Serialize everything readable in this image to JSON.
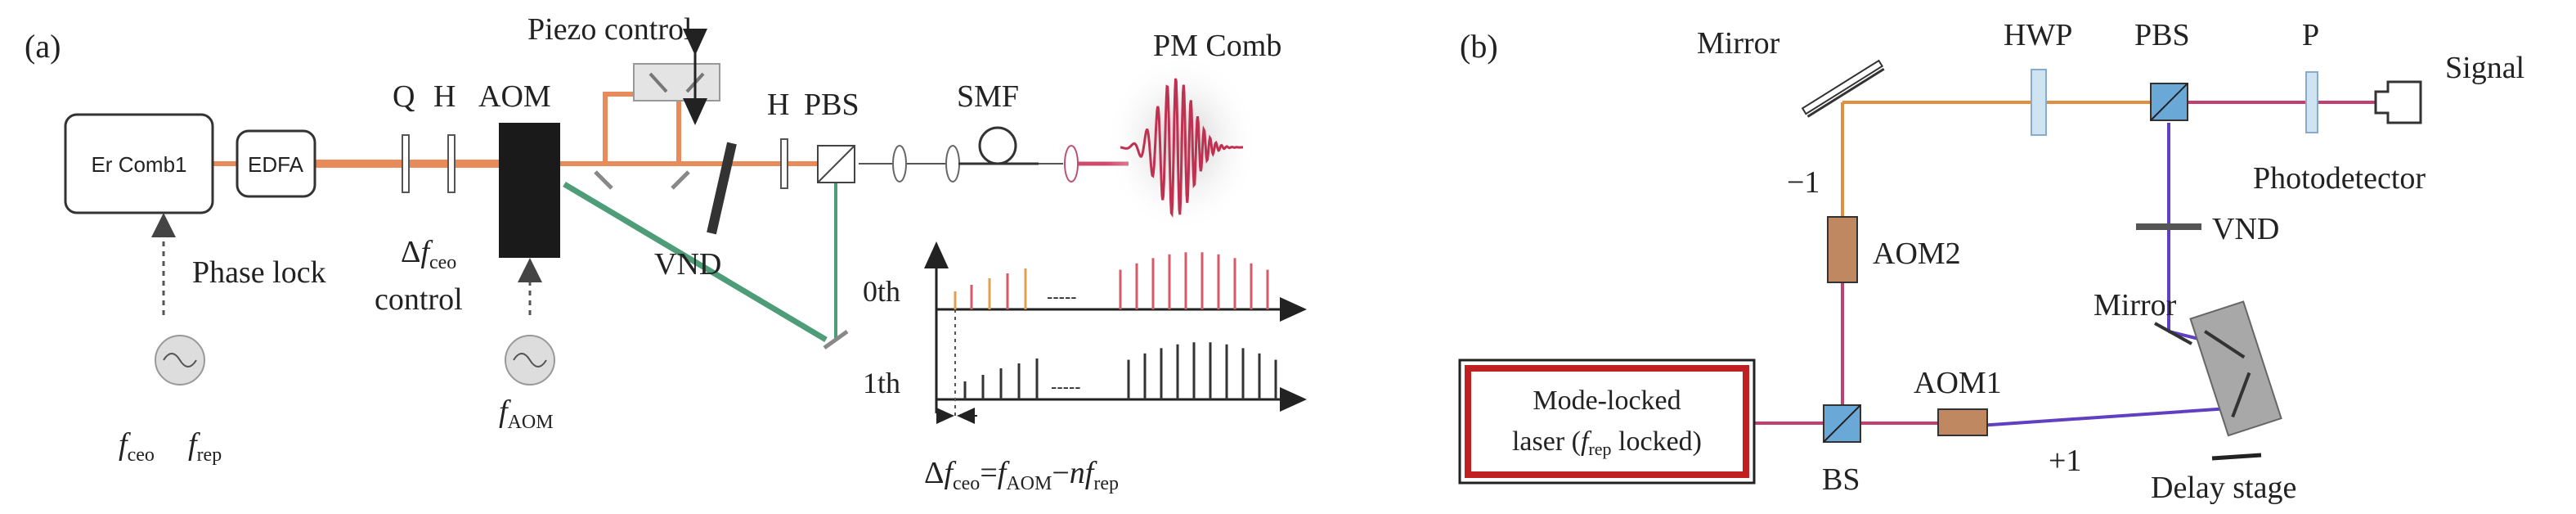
{
  "panel_a": {
    "tag": "(a)",
    "er_comb": "Er Comb1",
    "edfa": "EDFA",
    "q": "Q",
    "h1": "H",
    "aom": "AOM",
    "piezo": "Piezo control",
    "vnd": "VND",
    "h2": "H",
    "pbs": "PBS",
    "smf": "SMF",
    "pm_comb": "PM Comb",
    "phase_lock": "Phase lock",
    "delta": "Δ",
    "f": "f",
    "ceo": "ceo",
    "rep": "rep",
    "aom_sub": "AOM",
    "control": "control",
    "n": "n",
    "equals": "=",
    "minus": "−",
    "dots": "-----",
    "order0": "0th",
    "order1": "1th",
    "colors": {
      "beam_main": "#e88a5a",
      "beam_green": "#4e9c78",
      "beam_pink": "#d04a6a",
      "tooth_red": "#d85a6a",
      "tooth_black": "#333333"
    }
  },
  "panel_b": {
    "tag": "(b)",
    "mirror_top": "Mirror",
    "hwp": "HWP",
    "pbs": "PBS",
    "p": "P",
    "signal": "Signal",
    "photodetector": "Photodetector",
    "minus_one": "−1",
    "vnd": "VND",
    "aom2": "AOM2",
    "mirror_right": "Mirror",
    "laser_line1": "Mode-locked",
    "laser_line2_a": "laser (",
    "f": "f",
    "rep": "rep",
    "laser_line2_b": " locked)",
    "bs": "BS",
    "aom1": "AOM1",
    "plus_one": "+1",
    "delay_stage": "Delay stage",
    "colors": {
      "beam_orange": "#e09040",
      "beam_pink": "#c04070",
      "beam_purple": "#6040c0",
      "aom_fill": "#c08860",
      "cube_fill": "#6aa8d8",
      "laser_border": "#c02020"
    }
  }
}
